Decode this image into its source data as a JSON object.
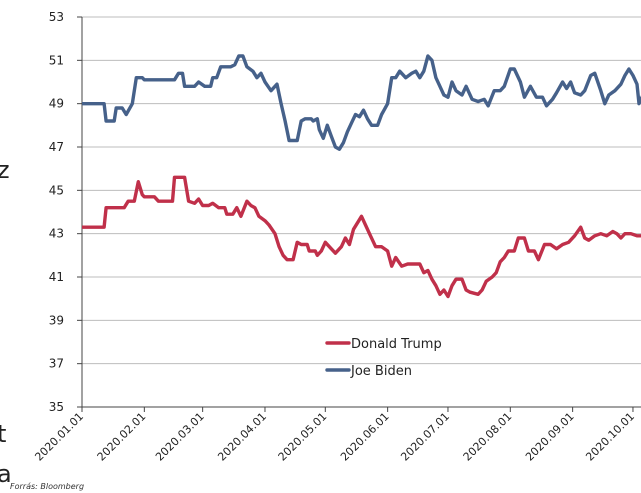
{
  "page": {
    "source": "Forrás: Bloomberg",
    "edge_fragments": [
      "z",
      "t",
      "a"
    ]
  },
  "chart_data": {
    "type": "line",
    "ylim": [
      35,
      53
    ],
    "yticks": [
      35,
      37,
      39,
      41,
      43,
      45,
      47,
      49,
      51,
      53
    ],
    "grid": "horizontal",
    "legend_position": "bottom-center",
    "xlim": [
      "2020-01-01",
      "2020-10-05"
    ],
    "xticks": [
      "2020.01.01",
      "2020.02.01",
      "2020.03.01",
      "2020.04.01",
      "2020.05.01",
      "2020.06.01",
      "2020.07.01",
      "2020.08.01",
      "2020.09.01",
      "2020.10.01"
    ],
    "series": [
      {
        "name": "Joe Biden",
        "color": "#46618a",
        "points": [
          [
            "2020-01-01",
            49.0
          ],
          [
            "2020-01-12",
            49.0
          ],
          [
            "2020-01-13",
            48.2
          ],
          [
            "2020-01-17",
            48.2
          ],
          [
            "2020-01-18",
            48.8
          ],
          [
            "2020-01-21",
            48.8
          ],
          [
            "2020-01-23",
            48.5
          ],
          [
            "2020-01-26",
            49.0
          ],
          [
            "2020-01-28",
            50.2
          ],
          [
            "2020-01-31",
            50.2
          ],
          [
            "2020-02-01",
            50.1
          ],
          [
            "2020-02-16",
            50.1
          ],
          [
            "2020-02-18",
            50.4
          ],
          [
            "2020-02-20",
            50.4
          ],
          [
            "2020-02-21",
            49.8
          ],
          [
            "2020-02-26",
            49.8
          ],
          [
            "2020-02-28",
            50.0
          ],
          [
            "2020-03-02",
            49.8
          ],
          [
            "2020-03-05",
            49.8
          ],
          [
            "2020-03-06",
            50.2
          ],
          [
            "2020-03-08",
            50.2
          ],
          [
            "2020-03-10",
            50.7
          ],
          [
            "2020-03-15",
            50.7
          ],
          [
            "2020-03-17",
            50.8
          ],
          [
            "2020-03-19",
            51.2
          ],
          [
            "2020-03-21",
            51.2
          ],
          [
            "2020-03-23",
            50.7
          ],
          [
            "2020-03-26",
            50.5
          ],
          [
            "2020-03-28",
            50.2
          ],
          [
            "2020-03-30",
            50.4
          ],
          [
            "2020-04-01",
            50.0
          ],
          [
            "2020-04-04",
            49.6
          ],
          [
            "2020-04-07",
            49.9
          ],
          [
            "2020-04-09",
            49.0
          ],
          [
            "2020-04-11",
            48.2
          ],
          [
            "2020-04-13",
            47.3
          ],
          [
            "2020-04-17",
            47.3
          ],
          [
            "2020-04-19",
            48.2
          ],
          [
            "2020-04-21",
            48.3
          ],
          [
            "2020-04-24",
            48.3
          ],
          [
            "2020-04-25",
            48.2
          ],
          [
            "2020-04-27",
            48.3
          ],
          [
            "2020-04-28",
            47.8
          ],
          [
            "2020-04-30",
            47.4
          ],
          [
            "2020-05-02",
            48.0
          ],
          [
            "2020-05-04",
            47.5
          ],
          [
            "2020-05-06",
            47.0
          ],
          [
            "2020-05-08",
            46.9
          ],
          [
            "2020-05-10",
            47.2
          ],
          [
            "2020-05-12",
            47.7
          ],
          [
            "2020-05-14",
            48.1
          ],
          [
            "2020-05-16",
            48.5
          ],
          [
            "2020-05-18",
            48.4
          ],
          [
            "2020-05-20",
            48.7
          ],
          [
            "2020-05-22",
            48.3
          ],
          [
            "2020-05-24",
            48.0
          ],
          [
            "2020-05-27",
            48.0
          ],
          [
            "2020-05-29",
            48.5
          ],
          [
            "2020-06-01",
            49.0
          ],
          [
            "2020-06-03",
            50.2
          ],
          [
            "2020-06-05",
            50.2
          ],
          [
            "2020-06-07",
            50.5
          ],
          [
            "2020-06-10",
            50.2
          ],
          [
            "2020-06-13",
            50.4
          ],
          [
            "2020-06-15",
            50.5
          ],
          [
            "2020-06-17",
            50.2
          ],
          [
            "2020-06-19",
            50.5
          ],
          [
            "2020-06-21",
            51.2
          ],
          [
            "2020-06-23",
            51.0
          ],
          [
            "2020-06-25",
            50.2
          ],
          [
            "2020-06-27",
            49.8
          ],
          [
            "2020-06-29",
            49.4
          ],
          [
            "2020-07-01",
            49.3
          ],
          [
            "2020-07-03",
            50.0
          ],
          [
            "2020-07-05",
            49.6
          ],
          [
            "2020-07-08",
            49.4
          ],
          [
            "2020-07-10",
            49.8
          ],
          [
            "2020-07-13",
            49.2
          ],
          [
            "2020-07-16",
            49.1
          ],
          [
            "2020-07-19",
            49.2
          ],
          [
            "2020-07-21",
            48.9
          ],
          [
            "2020-07-24",
            49.6
          ],
          [
            "2020-07-27",
            49.6
          ],
          [
            "2020-07-29",
            49.8
          ],
          [
            "2020-08-01",
            50.6
          ],
          [
            "2020-08-03",
            50.6
          ],
          [
            "2020-08-06",
            50.0
          ],
          [
            "2020-08-08",
            49.3
          ],
          [
            "2020-08-11",
            49.8
          ],
          [
            "2020-08-14",
            49.3
          ],
          [
            "2020-08-17",
            49.3
          ],
          [
            "2020-08-19",
            48.9
          ],
          [
            "2020-08-22",
            49.2
          ],
          [
            "2020-08-24",
            49.5
          ],
          [
            "2020-08-27",
            50.0
          ],
          [
            "2020-08-29",
            49.7
          ],
          [
            "2020-08-31",
            50.0
          ],
          [
            "2020-09-02",
            49.5
          ],
          [
            "2020-09-05",
            49.4
          ],
          [
            "2020-09-07",
            49.6
          ],
          [
            "2020-09-10",
            50.3
          ],
          [
            "2020-09-12",
            50.4
          ],
          [
            "2020-09-15",
            49.6
          ],
          [
            "2020-09-17",
            49.0
          ],
          [
            "2020-09-19",
            49.4
          ],
          [
            "2020-09-22",
            49.6
          ],
          [
            "2020-09-25",
            49.9
          ],
          [
            "2020-09-27",
            50.3
          ],
          [
            "2020-09-29",
            50.6
          ],
          [
            "2020-10-01",
            50.3
          ],
          [
            "2020-10-03",
            49.9
          ],
          [
            "2020-10-04",
            49.0
          ],
          [
            "2020-10-06",
            49.4
          ],
          [
            "2020-10-09",
            49.8
          ],
          [
            "2020-10-11",
            49.7
          ],
          [
            "2020-10-13",
            50.0
          ],
          [
            "2020-10-15",
            49.8
          ],
          [
            "2020-10-18",
            49.7
          ]
        ]
      },
      {
        "name": "Donald Trump",
        "color": "#c0304a",
        "points": [
          [
            "2020-01-01",
            43.3
          ],
          [
            "2020-01-12",
            43.3
          ],
          [
            "2020-01-13",
            44.2
          ],
          [
            "2020-01-22",
            44.2
          ],
          [
            "2020-01-24",
            44.5
          ],
          [
            "2020-01-27",
            44.5
          ],
          [
            "2020-01-29",
            45.4
          ],
          [
            "2020-01-31",
            44.8
          ],
          [
            "2020-02-01",
            44.7
          ],
          [
            "2020-02-06",
            44.7
          ],
          [
            "2020-02-08",
            44.5
          ],
          [
            "2020-02-15",
            44.5
          ],
          [
            "2020-02-16",
            45.6
          ],
          [
            "2020-02-21",
            45.6
          ],
          [
            "2020-02-23",
            44.5
          ],
          [
            "2020-02-26",
            44.4
          ],
          [
            "2020-02-28",
            44.6
          ],
          [
            "2020-03-01",
            44.3
          ],
          [
            "2020-03-04",
            44.3
          ],
          [
            "2020-03-06",
            44.4
          ],
          [
            "2020-03-09",
            44.2
          ],
          [
            "2020-03-12",
            44.2
          ],
          [
            "2020-03-13",
            43.9
          ],
          [
            "2020-03-16",
            43.9
          ],
          [
            "2020-03-18",
            44.2
          ],
          [
            "2020-03-20",
            43.8
          ],
          [
            "2020-03-23",
            44.5
          ],
          [
            "2020-03-25",
            44.3
          ],
          [
            "2020-03-27",
            44.2
          ],
          [
            "2020-03-29",
            43.8
          ],
          [
            "2020-04-01",
            43.6
          ],
          [
            "2020-04-03",
            43.4
          ],
          [
            "2020-04-06",
            43.0
          ],
          [
            "2020-04-08",
            42.4
          ],
          [
            "2020-04-10",
            42.0
          ],
          [
            "2020-04-12",
            41.8
          ],
          [
            "2020-04-15",
            41.8
          ],
          [
            "2020-04-17",
            42.6
          ],
          [
            "2020-04-19",
            42.5
          ],
          [
            "2020-04-22",
            42.5
          ],
          [
            "2020-04-23",
            42.2
          ],
          [
            "2020-04-26",
            42.2
          ],
          [
            "2020-04-27",
            42.0
          ],
          [
            "2020-04-29",
            42.2
          ],
          [
            "2020-05-01",
            42.6
          ],
          [
            "2020-05-04",
            42.3
          ],
          [
            "2020-05-06",
            42.1
          ],
          [
            "2020-05-09",
            42.4
          ],
          [
            "2020-05-11",
            42.8
          ],
          [
            "2020-05-13",
            42.5
          ],
          [
            "2020-05-15",
            43.2
          ],
          [
            "2020-05-17",
            43.5
          ],
          [
            "2020-05-19",
            43.8
          ],
          [
            "2020-05-21",
            43.4
          ],
          [
            "2020-05-23",
            43.0
          ],
          [
            "2020-05-26",
            42.4
          ],
          [
            "2020-05-29",
            42.4
          ],
          [
            "2020-06-01",
            42.2
          ],
          [
            "2020-06-03",
            41.5
          ],
          [
            "2020-06-05",
            41.9
          ],
          [
            "2020-06-08",
            41.5
          ],
          [
            "2020-06-11",
            41.6
          ],
          [
            "2020-06-14",
            41.6
          ],
          [
            "2020-06-17",
            41.6
          ],
          [
            "2020-06-19",
            41.2
          ],
          [
            "2020-06-21",
            41.3
          ],
          [
            "2020-06-23",
            40.9
          ],
          [
            "2020-06-25",
            40.6
          ],
          [
            "2020-06-27",
            40.2
          ],
          [
            "2020-06-29",
            40.4
          ],
          [
            "2020-07-01",
            40.1
          ],
          [
            "2020-07-03",
            40.6
          ],
          [
            "2020-07-05",
            40.9
          ],
          [
            "2020-07-08",
            40.9
          ],
          [
            "2020-07-10",
            40.4
          ],
          [
            "2020-07-12",
            40.3
          ],
          [
            "2020-07-16",
            40.2
          ],
          [
            "2020-07-18",
            40.4
          ],
          [
            "2020-07-20",
            40.8
          ],
          [
            "2020-07-23",
            41.0
          ],
          [
            "2020-07-25",
            41.2
          ],
          [
            "2020-07-27",
            41.7
          ],
          [
            "2020-07-29",
            41.9
          ],
          [
            "2020-07-31",
            42.2
          ],
          [
            "2020-08-03",
            42.2
          ],
          [
            "2020-08-05",
            42.8
          ],
          [
            "2020-08-08",
            42.8
          ],
          [
            "2020-08-10",
            42.2
          ],
          [
            "2020-08-13",
            42.2
          ],
          [
            "2020-08-15",
            41.8
          ],
          [
            "2020-08-18",
            42.5
          ],
          [
            "2020-08-21",
            42.5
          ],
          [
            "2020-08-24",
            42.3
          ],
          [
            "2020-08-27",
            42.5
          ],
          [
            "2020-08-30",
            42.6
          ],
          [
            "2020-09-02",
            42.9
          ],
          [
            "2020-09-05",
            43.3
          ],
          [
            "2020-09-07",
            42.8
          ],
          [
            "2020-09-09",
            42.7
          ],
          [
            "2020-09-12",
            42.9
          ],
          [
            "2020-09-15",
            43.0
          ],
          [
            "2020-09-18",
            42.9
          ],
          [
            "2020-09-21",
            43.1
          ],
          [
            "2020-09-23",
            43.0
          ],
          [
            "2020-09-25",
            42.8
          ],
          [
            "2020-09-27",
            43.0
          ],
          [
            "2020-09-30",
            43.0
          ],
          [
            "2020-10-03",
            42.9
          ],
          [
            "2020-10-06",
            42.9
          ],
          [
            "2020-10-09",
            42.8
          ],
          [
            "2020-10-12",
            43.0
          ],
          [
            "2020-10-15",
            42.9
          ],
          [
            "2020-10-18",
            42.9
          ]
        ]
      }
    ]
  }
}
